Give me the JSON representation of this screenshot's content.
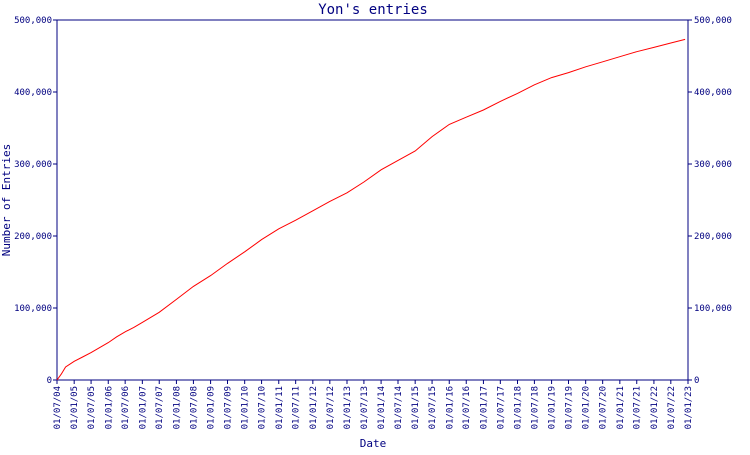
{
  "chart_data": {
    "type": "line",
    "title": "Yon's entries",
    "xlabel": "Date",
    "ylabel": "Number of Entries",
    "grid": false,
    "ylim": [
      0,
      500000
    ],
    "xlim": [
      "01/07/04",
      "01/01/23"
    ],
    "y_ticks": [
      "0",
      "100,000",
      "200,000",
      "300,000",
      "400,000",
      "500,000"
    ],
    "y_tick_values": [
      0,
      100000,
      200000,
      300000,
      400000,
      500000
    ],
    "x_ticks": [
      "01/07/04",
      "01/01/05",
      "01/07/05",
      "01/01/06",
      "01/07/06",
      "01/01/07",
      "01/07/07",
      "01/01/08",
      "01/07/08",
      "01/01/09",
      "01/07/09",
      "01/01/10",
      "01/07/10",
      "01/01/11",
      "01/07/11",
      "01/01/12",
      "01/07/12",
      "01/01/13",
      "01/07/13",
      "01/01/14",
      "01/07/14",
      "01/01/15",
      "01/07/15",
      "01/01/16",
      "01/07/16",
      "01/01/17",
      "01/07/17",
      "01/01/18",
      "01/07/18",
      "01/01/19",
      "01/07/19",
      "01/01/20",
      "01/07/20",
      "01/01/21",
      "01/07/21",
      "01/01/22",
      "01/07/22",
      "01/01/23"
    ],
    "series": [
      {
        "color": "#ff0000",
        "x": [
          "01/07/04",
          "15/08/04",
          "01/10/04",
          "01/01/05",
          "01/04/05",
          "01/07/05",
          "01/10/05",
          "01/01/06",
          "01/04/06",
          "01/07/06",
          "01/10/06",
          "01/01/07",
          "01/07/07",
          "01/01/08",
          "01/07/08",
          "01/01/09",
          "01/07/09",
          "01/01/10",
          "01/07/10",
          "01/01/11",
          "01/07/11",
          "01/01/12",
          "01/07/12",
          "01/01/13",
          "01/07/13",
          "01/01/14",
          "01/07/14",
          "01/01/15",
          "01/07/15",
          "01/01/16",
          "01/07/16",
          "01/01/17",
          "01/07/17",
          "01/01/18",
          "01/07/18",
          "01/01/19",
          "01/07/19",
          "01/01/20",
          "01/07/20",
          "01/01/21",
          "01/07/21",
          "01/01/22",
          "01/07/22",
          "01/12/22"
        ],
        "values": [
          0,
          8000,
          18000,
          26000,
          32000,
          38000,
          45000,
          52000,
          60000,
          67000,
          73000,
          80000,
          94000,
          112000,
          130000,
          145000,
          162000,
          178000,
          195000,
          210000,
          222000,
          235000,
          248000,
          260000,
          275000,
          292000,
          305000,
          318000,
          338000,
          355000,
          365000,
          375000,
          387000,
          398000,
          410000,
          420000,
          427000,
          435000,
          442000,
          449000,
          456000,
          462000,
          468000,
          473000
        ]
      }
    ]
  }
}
